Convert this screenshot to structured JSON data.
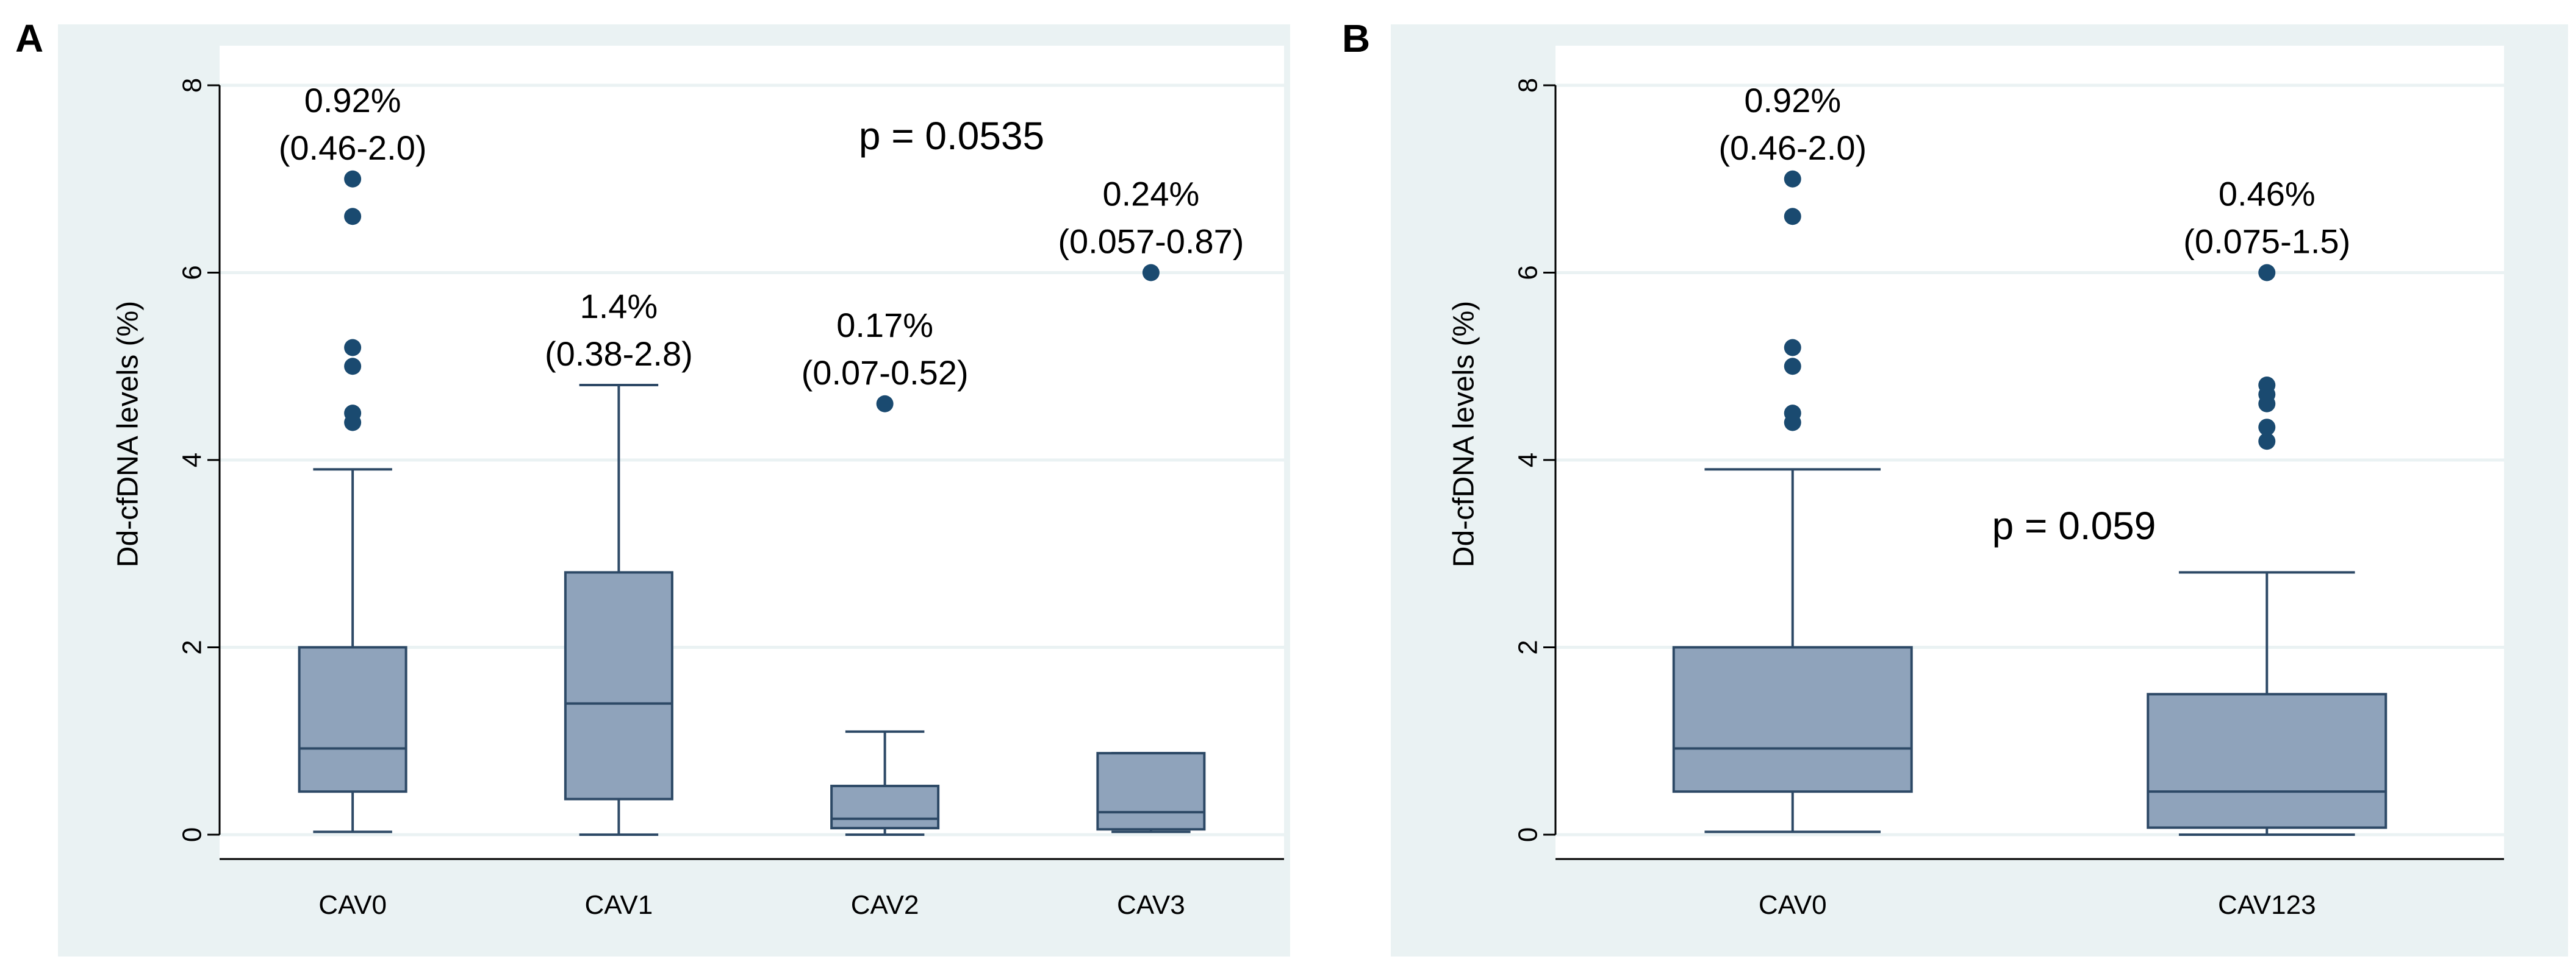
{
  "chart_data": [
    {
      "type": "box",
      "panel_label": "A",
      "ylabel": "Dd-cfDNA levels (%)",
      "ylim": [
        0,
        8
      ],
      "yticks": [
        "0",
        "2",
        "4",
        "6",
        "8"
      ],
      "categories": [
        "CAV0",
        "CAV1",
        "CAV2",
        "CAV3"
      ],
      "p_value_label": "p = 0.0535",
      "boxes": [
        {
          "name": "CAV0",
          "q1": 0.46,
          "median": 0.92,
          "q3": 2.0,
          "whisker_low": 0.03,
          "whisker_high": 3.9,
          "outliers": [
            4.4,
            4.5,
            5.0,
            5.2,
            6.6,
            7.0
          ],
          "label_line1": "0.92%",
          "label_line2": "(0.46-2.0)"
        },
        {
          "name": "CAV1",
          "q1": 0.38,
          "median": 1.4,
          "q3": 2.8,
          "whisker_low": 0.0,
          "whisker_high": 4.8,
          "outliers": [],
          "label_line1": "1.4%",
          "label_line2": "(0.38-2.8)"
        },
        {
          "name": "CAV2",
          "q1": 0.07,
          "median": 0.17,
          "q3": 0.52,
          "whisker_low": 0.0,
          "whisker_high": 1.1,
          "outliers": [
            4.6
          ],
          "label_line1": "0.17%",
          "label_line2": "(0.07-0.52)"
        },
        {
          "name": "CAV3",
          "q1": 0.057,
          "median": 0.24,
          "q3": 0.87,
          "whisker_low": 0.03,
          "whisker_high": 0.87,
          "outliers": [
            6.0
          ],
          "label_line1": "0.24%",
          "label_line2": "(0.057-0.87)"
        }
      ]
    },
    {
      "type": "box",
      "panel_label": "B",
      "ylabel": "Dd-cfDNA levels (%)",
      "ylim": [
        0,
        8
      ],
      "yticks": [
        "0",
        "2",
        "4",
        "6",
        "8"
      ],
      "categories": [
        "CAV0",
        "CAV123"
      ],
      "p_value_label": "p = 0.059",
      "boxes": [
        {
          "name": "CAV0",
          "q1": 0.46,
          "median": 0.92,
          "q3": 2.0,
          "whisker_low": 0.03,
          "whisker_high": 3.9,
          "outliers": [
            4.4,
            4.5,
            5.0,
            5.2,
            6.6,
            7.0
          ],
          "label_line1": "0.92%",
          "label_line2": "(0.46-2.0)"
        },
        {
          "name": "CAV123",
          "q1": 0.075,
          "median": 0.46,
          "q3": 1.5,
          "whisker_low": 0.0,
          "whisker_high": 2.8,
          "outliers": [
            4.2,
            4.35,
            4.6,
            4.7,
            4.8,
            6.0
          ],
          "label_line1": "0.46%",
          "label_line2": "(0.075-1.5)"
        }
      ]
    }
  ]
}
